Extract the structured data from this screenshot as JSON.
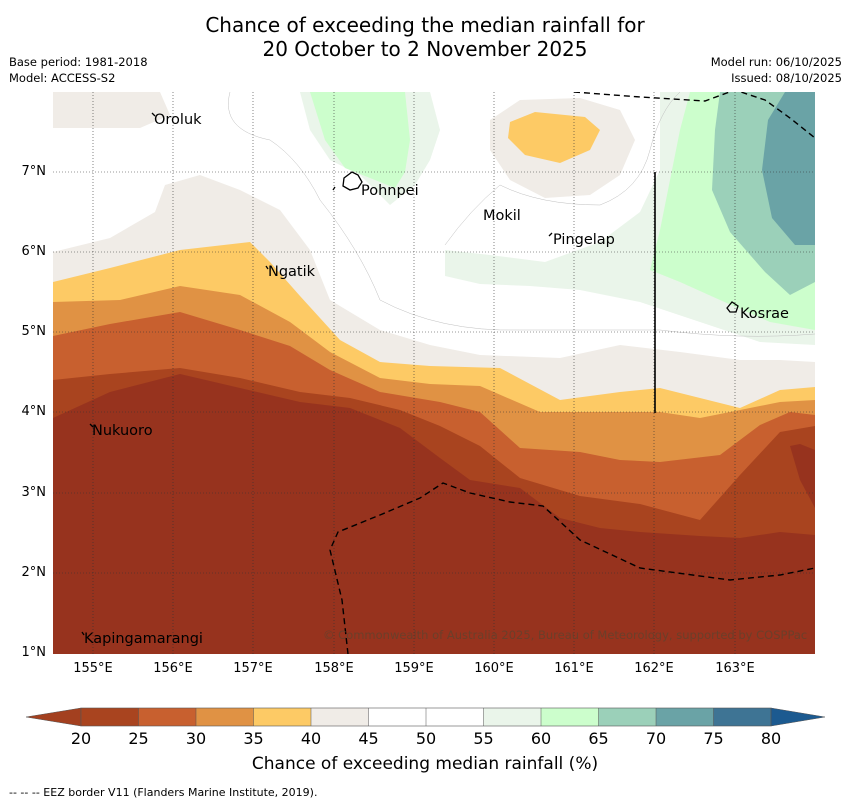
{
  "title": {
    "line1": "Chance of exceeding the median rainfall for",
    "line2": "20 October to 2 November 2025"
  },
  "meta": {
    "base_period": "Base period: 1981-2018",
    "model": "Model: ACCESS-S2",
    "model_run": "Model run: 06/10/2025",
    "issued": "Issued: 08/10/2025"
  },
  "axes": {
    "lat_labels": [
      "7°N",
      "6°N",
      "5°N",
      "4°N",
      "3°N",
      "2°N",
      "1°N"
    ],
    "lon_labels": [
      "155°E",
      "156°E",
      "157°E",
      "158°E",
      "159°E",
      "160°E",
      "161°E",
      "162°E",
      "163°E"
    ],
    "lat_range": [
      1,
      8.0
    ],
    "lon_range": [
      154.5,
      164.0
    ]
  },
  "places": {
    "oroluk": "Oroluk",
    "pohnpei": "Pohnpei",
    "mokil": "Mokil",
    "pingelap": "Pingelap",
    "ngatik": "Ngatik",
    "kosrae": "Kosrae",
    "nukuoro": "Nukuoro",
    "kapingamarangi": "Kapingamarangi"
  },
  "copyright": "© Commonwealth of Australia 2025, Bureau of Meteorology, supported by COSPPac",
  "colorbar": {
    "label": "Chance of exceeding median rainfall (%)",
    "ticks": [
      "20",
      "25",
      "30",
      "35",
      "40",
      "45",
      "50",
      "55",
      "60",
      "65",
      "70",
      "75",
      "80"
    ],
    "colors": {
      "under": "#a3401f",
      "c20_25": "#a9441f",
      "c25_30": "#c8602f",
      "c30_35": "#e09244",
      "c35_40": "#fdca65",
      "c40_45": "#f0ece7",
      "c45_55": "#ffffff",
      "c55_60": "#eaf5ea",
      "c60_65": "#ccfecc",
      "c65_70": "#9bd0b9",
      "c70_75": "#6aa3a6",
      "c75_80": "#3e7494",
      "over": "#1c5a90",
      "deep": "#97331e"
    }
  },
  "footnote": "--  --  -- EEZ border V11 (Flanders Marine Institute, 2019)."
}
